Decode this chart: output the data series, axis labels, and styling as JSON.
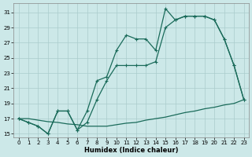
{
  "xlabel": "Humidex (Indice chaleur)",
  "background_color": "#cce8e8",
  "grid_color": "#aacccc",
  "line_color": "#1a6b5a",
  "xlim": [
    -0.5,
    23.5
  ],
  "ylim": [
    14.5,
    32.2
  ],
  "xticks": [
    0,
    1,
    2,
    3,
    4,
    5,
    6,
    7,
    8,
    9,
    10,
    11,
    12,
    13,
    14,
    15,
    16,
    17,
    18,
    19,
    20,
    21,
    22,
    23
  ],
  "yticks": [
    15,
    17,
    19,
    21,
    23,
    25,
    27,
    29,
    31
  ],
  "line_straight_x": [
    0,
    1,
    2,
    3,
    4,
    5,
    6,
    7,
    8,
    9,
    10,
    11,
    12,
    13,
    14,
    15,
    16,
    17,
    18,
    19,
    20,
    21,
    22,
    23
  ],
  "line_straight_y": [
    17.0,
    17.0,
    16.8,
    16.6,
    16.5,
    16.3,
    16.2,
    16.0,
    16.0,
    16.0,
    16.2,
    16.4,
    16.5,
    16.8,
    17.0,
    17.2,
    17.5,
    17.8,
    18.0,
    18.3,
    18.5,
    18.8,
    19.0,
    19.5
  ],
  "line_upper_x": [
    0,
    1,
    2,
    3,
    4,
    5,
    6,
    7,
    8,
    9,
    10,
    11,
    12,
    13,
    14,
    15,
    16,
    17,
    18,
    19,
    20,
    21,
    22,
    23
  ],
  "line_upper_y": [
    17.0,
    16.5,
    16.0,
    15.0,
    18.0,
    18.0,
    15.5,
    18.0,
    22.0,
    22.5,
    26.0,
    28.0,
    27.5,
    27.5,
    26.0,
    31.5,
    30.0,
    30.5,
    30.5,
    30.5,
    30.0,
    27.5,
    24.0,
    19.5
  ],
  "line_lower_x": [
    0,
    1,
    2,
    3,
    4,
    5,
    6,
    7,
    8,
    9,
    10,
    11,
    12,
    13,
    14,
    15,
    16,
    17,
    18,
    19,
    20,
    21,
    22,
    23
  ],
  "line_lower_y": [
    17.0,
    16.5,
    16.0,
    15.0,
    18.0,
    18.0,
    15.5,
    16.5,
    19.5,
    22.0,
    24.0,
    24.0,
    24.0,
    24.0,
    24.5,
    29.0,
    30.0,
    30.5,
    30.5,
    30.5,
    30.0,
    27.5,
    24.0,
    19.5
  ]
}
